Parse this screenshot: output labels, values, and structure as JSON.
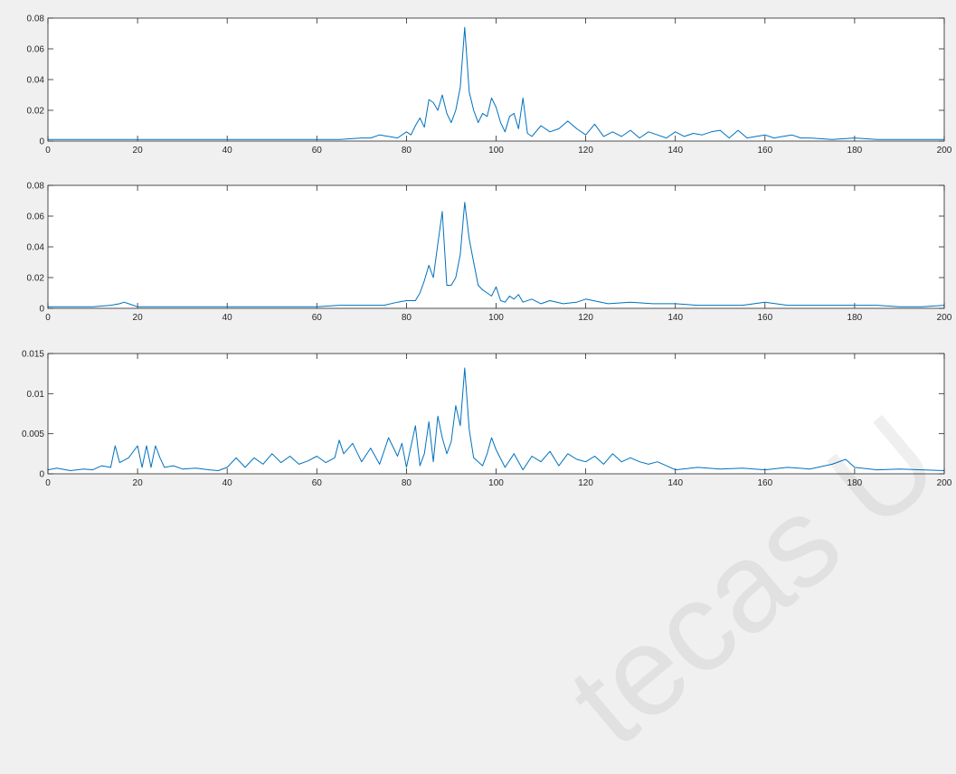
{
  "watermark": "tecas U",
  "chart_data": [
    {
      "type": "line",
      "xlim": [
        0,
        200
      ],
      "ylim": [
        0,
        0.08
      ],
      "xticks": [
        0,
        20,
        40,
        60,
        80,
        100,
        120,
        140,
        160,
        180,
        200
      ],
      "yticks": [
        0,
        0.02,
        0.04,
        0.06,
        0.08
      ],
      "ytick_labels": [
        "0",
        "0.02",
        "0.04",
        "0.06",
        "0.08"
      ],
      "color": "#0072bd",
      "x": [
        0,
        5,
        10,
        15,
        20,
        25,
        30,
        35,
        40,
        45,
        50,
        55,
        60,
        65,
        70,
        72,
        74,
        76,
        78,
        80,
        81,
        82,
        83,
        84,
        85,
        86,
        87,
        88,
        89,
        90,
        91,
        92,
        93,
        94,
        95,
        96,
        97,
        98,
        99,
        100,
        101,
        102,
        103,
        104,
        105,
        106,
        107,
        108,
        110,
        112,
        114,
        116,
        118,
        120,
        122,
        124,
        126,
        128,
        130,
        132,
        134,
        136,
        138,
        140,
        142,
        144,
        146,
        148,
        150,
        152,
        154,
        156,
        158,
        160,
        162,
        164,
        166,
        168,
        170,
        175,
        180,
        185,
        190,
        195,
        200
      ],
      "y": [
        0.001,
        0.001,
        0.001,
        0.001,
        0.001,
        0.001,
        0.001,
        0.001,
        0.001,
        0.001,
        0.001,
        0.001,
        0.001,
        0.001,
        0.002,
        0.002,
        0.004,
        0.003,
        0.002,
        0.006,
        0.004,
        0.01,
        0.015,
        0.009,
        0.027,
        0.025,
        0.02,
        0.03,
        0.018,
        0.012,
        0.02,
        0.035,
        0.074,
        0.032,
        0.02,
        0.012,
        0.018,
        0.016,
        0.028,
        0.022,
        0.012,
        0.006,
        0.016,
        0.018,
        0.008,
        0.028,
        0.005,
        0.003,
        0.01,
        0.006,
        0.008,
        0.013,
        0.008,
        0.004,
        0.011,
        0.003,
        0.006,
        0.003,
        0.007,
        0.002,
        0.006,
        0.004,
        0.002,
        0.006,
        0.003,
        0.005,
        0.004,
        0.006,
        0.007,
        0.002,
        0.007,
        0.002,
        0.003,
        0.004,
        0.002,
        0.003,
        0.004,
        0.002,
        0.002,
        0.001,
        0.002,
        0.001,
        0.001,
        0.001,
        0.001
      ]
    },
    {
      "type": "line",
      "xlim": [
        0,
        200
      ],
      "ylim": [
        0,
        0.08
      ],
      "xticks": [
        0,
        20,
        40,
        60,
        80,
        100,
        120,
        140,
        160,
        180,
        200
      ],
      "yticks": [
        0,
        0.02,
        0.04,
        0.06,
        0.08
      ],
      "ytick_labels": [
        "0",
        "0.02",
        "0.04",
        "0.06",
        "0.08"
      ],
      "color": "#0072bd",
      "x": [
        0,
        5,
        10,
        14,
        16,
        17,
        18,
        20,
        25,
        30,
        35,
        40,
        45,
        50,
        55,
        60,
        65,
        70,
        75,
        78,
        80,
        82,
        83,
        84,
        85,
        86,
        87,
        88,
        89,
        90,
        91,
        92,
        93,
        94,
        95,
        96,
        97,
        98,
        99,
        100,
        101,
        102,
        103,
        104,
        105,
        106,
        108,
        110,
        112,
        115,
        118,
        120,
        125,
        130,
        135,
        140,
        145,
        150,
        155,
        160,
        165,
        170,
        175,
        180,
        185,
        190,
        195,
        200
      ],
      "y": [
        0.001,
        0.001,
        0.001,
        0.002,
        0.003,
        0.004,
        0.003,
        0.001,
        0.001,
        0.001,
        0.001,
        0.001,
        0.001,
        0.001,
        0.001,
        0.001,
        0.002,
        0.002,
        0.002,
        0.004,
        0.005,
        0.005,
        0.01,
        0.018,
        0.028,
        0.02,
        0.042,
        0.063,
        0.015,
        0.015,
        0.02,
        0.035,
        0.069,
        0.045,
        0.03,
        0.015,
        0.012,
        0.01,
        0.008,
        0.014,
        0.005,
        0.004,
        0.008,
        0.006,
        0.009,
        0.004,
        0.006,
        0.003,
        0.005,
        0.003,
        0.004,
        0.006,
        0.003,
        0.004,
        0.003,
        0.003,
        0.002,
        0.002,
        0.002,
        0.004,
        0.002,
        0.002,
        0.002,
        0.002,
        0.002,
        0.001,
        0.001,
        0.002
      ]
    },
    {
      "type": "line",
      "xlim": [
        0,
        200
      ],
      "ylim": [
        0,
        0.015
      ],
      "xticks": [
        0,
        20,
        40,
        60,
        80,
        100,
        120,
        140,
        160,
        180,
        200
      ],
      "yticks": [
        0,
        0.005,
        0.01,
        0.015
      ],
      "ytick_labels": [
        "0",
        "0.005",
        "0.01",
        "0.015"
      ],
      "color": "#0072bd",
      "x": [
        0,
        2,
        5,
        8,
        10,
        12,
        14,
        15,
        16,
        18,
        20,
        21,
        22,
        23,
        24,
        25,
        26,
        28,
        30,
        33,
        36,
        38,
        40,
        42,
        44,
        46,
        48,
        50,
        52,
        54,
        56,
        58,
        60,
        62,
        64,
        65,
        66,
        68,
        70,
        72,
        74,
        76,
        78,
        79,
        80,
        82,
        83,
        84,
        85,
        86,
        87,
        88,
        89,
        90,
        91,
        92,
        93,
        94,
        95,
        96,
        97,
        98,
        99,
        100,
        102,
        104,
        106,
        108,
        110,
        112,
        114,
        116,
        118,
        120,
        122,
        124,
        126,
        128,
        130,
        132,
        134,
        136,
        138,
        140,
        145,
        150,
        155,
        160,
        165,
        170,
        175,
        178,
        180,
        185,
        190,
        195,
        200
      ],
      "y": [
        0.0005,
        0.0007,
        0.0004,
        0.0006,
        0.0005,
        0.001,
        0.0008,
        0.0035,
        0.0014,
        0.002,
        0.0035,
        0.0008,
        0.0035,
        0.0008,
        0.0035,
        0.002,
        0.0008,
        0.001,
        0.0006,
        0.0007,
        0.0005,
        0.0004,
        0.0008,
        0.002,
        0.0008,
        0.002,
        0.0012,
        0.0025,
        0.0014,
        0.0022,
        0.0012,
        0.0016,
        0.0022,
        0.0014,
        0.002,
        0.0042,
        0.0025,
        0.0038,
        0.0015,
        0.0032,
        0.0012,
        0.0045,
        0.0022,
        0.0038,
        0.0008,
        0.006,
        0.001,
        0.0025,
        0.0065,
        0.0015,
        0.0072,
        0.0045,
        0.0025,
        0.004,
        0.0085,
        0.006,
        0.0132,
        0.0055,
        0.002,
        0.0015,
        0.001,
        0.0025,
        0.0045,
        0.003,
        0.0008,
        0.0025,
        0.0005,
        0.0022,
        0.0015,
        0.0028,
        0.001,
        0.0025,
        0.0018,
        0.0015,
        0.0022,
        0.0012,
        0.0025,
        0.0015,
        0.002,
        0.0015,
        0.0012,
        0.0015,
        0.001,
        0.0005,
        0.0008,
        0.0006,
        0.0007,
        0.0005,
        0.0008,
        0.0006,
        0.0012,
        0.0018,
        0.0008,
        0.0005,
        0.0006,
        0.0005,
        0.0004
      ]
    }
  ]
}
